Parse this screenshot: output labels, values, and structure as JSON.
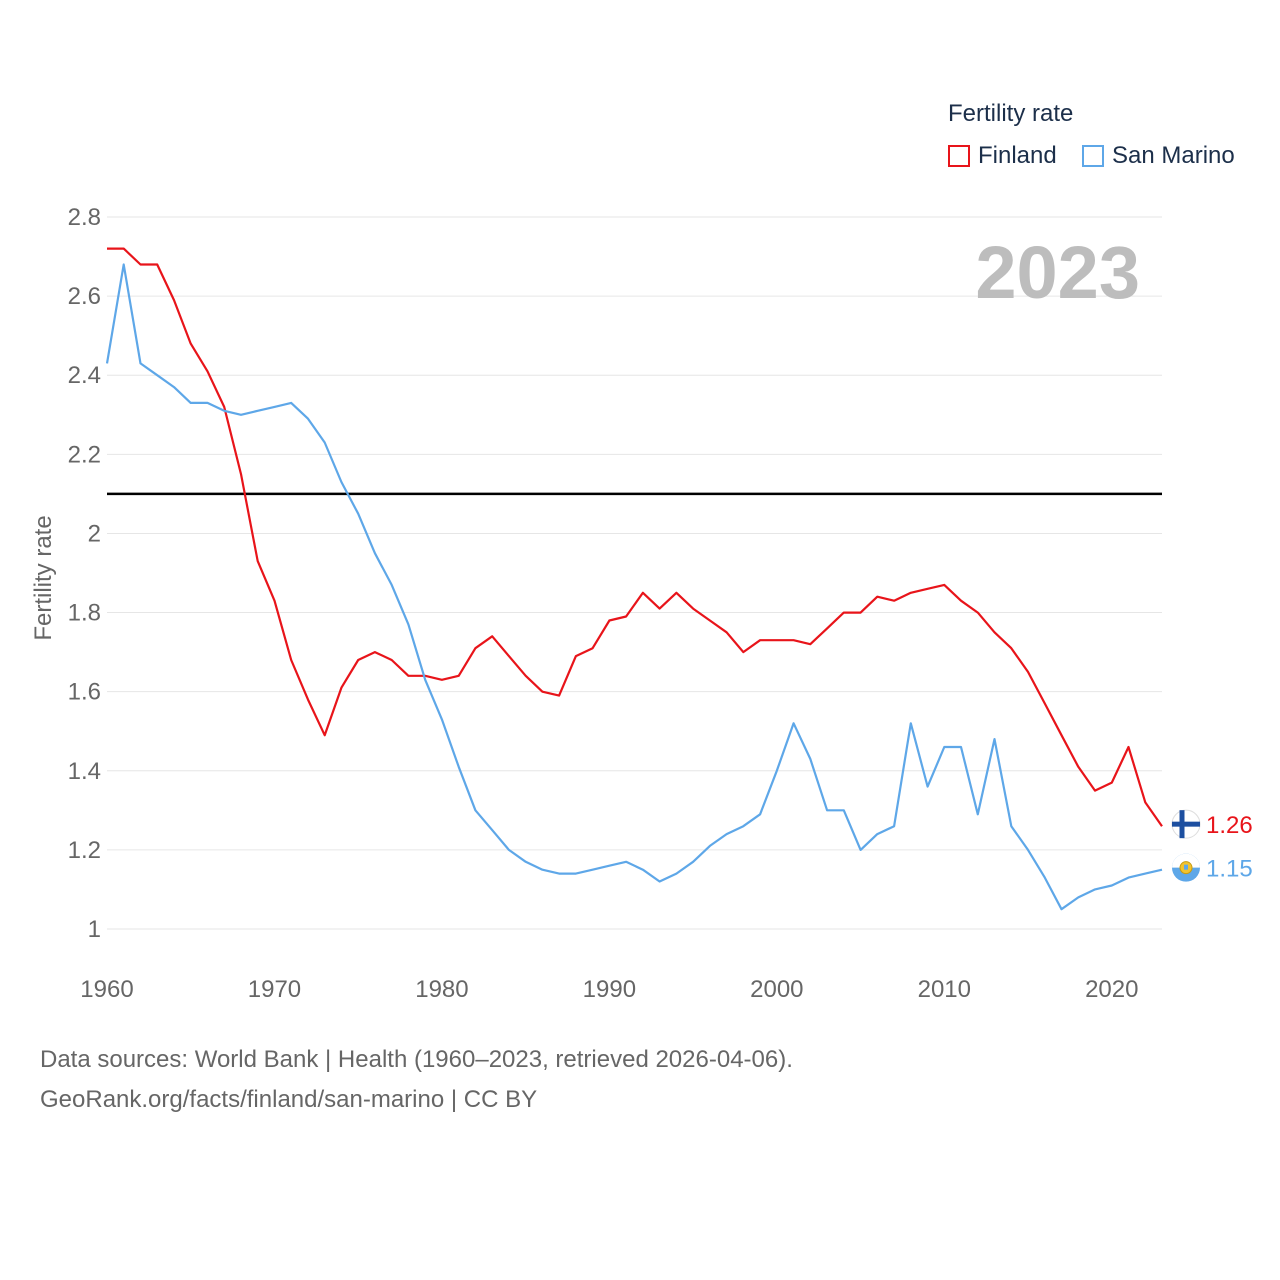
{
  "legend": {
    "title": "Fertility rate",
    "items": [
      {
        "name": "Finland",
        "color": "#e8141a"
      },
      {
        "name": "San Marino",
        "color": "#5ea7e8"
      }
    ]
  },
  "footer": {
    "line1": "Data sources: World Bank | Health (1960–2023, retrieved 2026-04-06).",
    "line2": "GeoRank.org/facts/finland/san-marino | CC BY"
  },
  "chart_data": {
    "type": "line",
    "year_label": "2023",
    "ylabel": "Fertility rate",
    "xlabel": "",
    "xlim": [
      1960,
      2023
    ],
    "ylim": [
      1,
      2.8
    ],
    "x_ticks": [
      1960,
      1970,
      1980,
      1990,
      2000,
      2010,
      2020
    ],
    "y_ticks": [
      {
        "value": 1,
        "label": "1"
      },
      {
        "value": 1.2,
        "label": "1.2"
      },
      {
        "value": 1.4,
        "label": "1.4"
      },
      {
        "value": 1.6,
        "label": "1.6"
      },
      {
        "value": 1.8,
        "label": "1.8"
      },
      {
        "value": 2,
        "label": "2"
      },
      {
        "value": 2.2,
        "label": "2.2"
      },
      {
        "value": 2.4,
        "label": "2.4"
      },
      {
        "value": 2.6,
        "label": "2.6"
      },
      {
        "value": 2.8,
        "label": "2.8"
      }
    ],
    "reference_line": {
      "value": 2.1,
      "color": "#000000"
    },
    "grid": true,
    "x": [
      1960,
      1961,
      1962,
      1963,
      1964,
      1965,
      1966,
      1967,
      1968,
      1969,
      1970,
      1971,
      1972,
      1973,
      1974,
      1975,
      1976,
      1977,
      1978,
      1979,
      1980,
      1981,
      1982,
      1983,
      1984,
      1985,
      1986,
      1987,
      1988,
      1989,
      1990,
      1991,
      1992,
      1993,
      1994,
      1995,
      1996,
      1997,
      1998,
      1999,
      2000,
      2001,
      2002,
      2003,
      2004,
      2005,
      2006,
      2007,
      2008,
      2009,
      2010,
      2011,
      2012,
      2013,
      2014,
      2015,
      2016,
      2017,
      2018,
      2019,
      2020,
      2021,
      2022,
      2023
    ],
    "series": [
      {
        "name": "Finland",
        "color": "#e8141a",
        "end_label": "1.26",
        "flag": "finland-flag",
        "values": [
          2.72,
          2.72,
          2.68,
          2.68,
          2.59,
          2.48,
          2.41,
          2.32,
          2.15,
          1.93,
          1.83,
          1.68,
          1.58,
          1.49,
          1.61,
          1.68,
          1.7,
          1.68,
          1.64,
          1.64,
          1.63,
          1.64,
          1.71,
          1.74,
          1.69,
          1.64,
          1.6,
          1.59,
          1.69,
          1.71,
          1.78,
          1.79,
          1.85,
          1.81,
          1.85,
          1.81,
          1.78,
          1.75,
          1.7,
          1.73,
          1.73,
          1.73,
          1.72,
          1.76,
          1.8,
          1.8,
          1.84,
          1.83,
          1.85,
          1.86,
          1.87,
          1.83,
          1.8,
          1.75,
          1.71,
          1.65,
          1.57,
          1.49,
          1.41,
          1.35,
          1.37,
          1.46,
          1.32,
          1.26
        ]
      },
      {
        "name": "San Marino",
        "color": "#5ea7e8",
        "end_label": "1.15",
        "flag": "san-marino-flag",
        "values": [
          2.43,
          2.68,
          2.43,
          2.4,
          2.37,
          2.33,
          2.33,
          2.31,
          2.3,
          2.31,
          2.32,
          2.33,
          2.29,
          2.23,
          2.13,
          2.05,
          1.95,
          1.87,
          1.77,
          1.63,
          1.53,
          1.41,
          1.3,
          1.25,
          1.2,
          1.17,
          1.15,
          1.14,
          1.14,
          1.15,
          1.16,
          1.17,
          1.15,
          1.12,
          1.14,
          1.17,
          1.21,
          1.24,
          1.26,
          1.29,
          1.4,
          1.52,
          1.43,
          1.3,
          1.3,
          1.2,
          1.24,
          1.26,
          1.52,
          1.36,
          1.46,
          1.46,
          1.29,
          1.48,
          1.26,
          1.2,
          1.13,
          1.05,
          1.08,
          1.1,
          1.11,
          1.13,
          1.14,
          1.15
        ]
      }
    ]
  }
}
